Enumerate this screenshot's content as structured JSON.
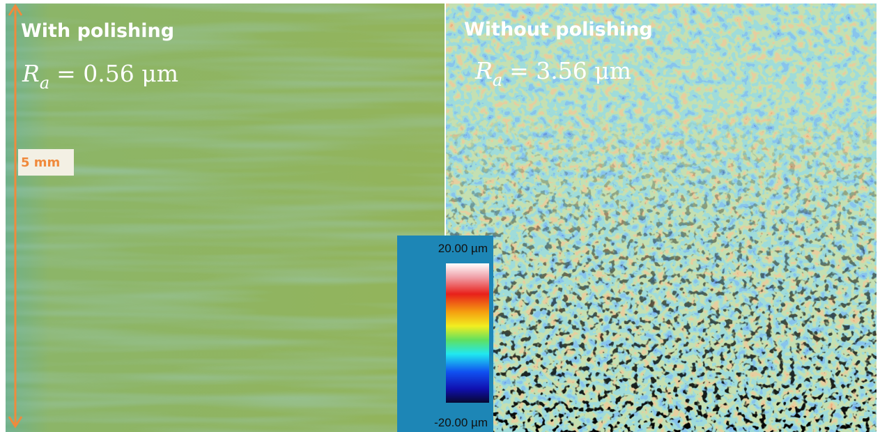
{
  "left_panel": {
    "title": "With polishing",
    "ra_symbol": "R",
    "ra_subscript": "a",
    "ra_value": "= 0.56 μm",
    "scale_label": "5 mm"
  },
  "right_panel": {
    "title": "Without polishing",
    "ra_symbol": "R",
    "ra_subscript": "a",
    "ra_value": "= 3.56 μm"
  },
  "colorbar": {
    "max_label": "20.00 µm",
    "min_label": "-20.00 µm"
  }
}
